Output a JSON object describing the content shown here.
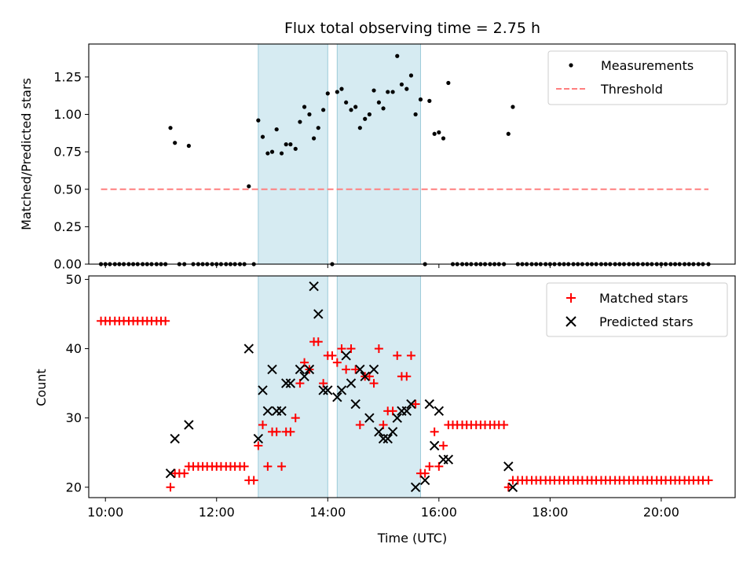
{
  "chart_data": [
    {
      "type": "scatter",
      "title": "Flux total observing time = 2.75 h",
      "xlabel": "",
      "ylabel": "Matched/Predicted stars",
      "xlim": [
        9.7,
        21.33
      ],
      "ylim": [
        0,
        1.47
      ],
      "yticks": [
        0,
        0.25,
        0.5,
        0.75,
        1.0,
        1.25
      ],
      "ytick_labels": [
        "0.00",
        "0.25",
        "0.50",
        "0.75",
        "1.00",
        "1.25"
      ],
      "xticks": [
        10,
        12,
        14,
        16,
        18,
        20
      ],
      "show_xtick_labels": false,
      "shaded_bands": [
        [
          12.75,
          14.0
        ],
        [
          14.17,
          15.67
        ]
      ],
      "threshold": {
        "name": "Threshold",
        "value": 0.5,
        "x_range": [
          9.92,
          20.85
        ],
        "color": "#ff7f7f"
      },
      "series": [
        {
          "name": "Measurements",
          "marker": "dot",
          "color": "#000000",
          "x": [
            9.92,
            10.0,
            10.08,
            10.17,
            10.25,
            10.33,
            10.42,
            10.5,
            10.58,
            10.67,
            10.75,
            10.83,
            10.92,
            11.0,
            11.08,
            11.17,
            11.25,
            11.33,
            11.42,
            11.5,
            11.58,
            11.67,
            11.75,
            11.83,
            11.92,
            12.0,
            12.08,
            12.17,
            12.25,
            12.33,
            12.42,
            12.5,
            12.58,
            12.67,
            12.75,
            12.83,
            12.92,
            13.0,
            13.08,
            13.17,
            13.25,
            13.33,
            13.42,
            13.5,
            13.58,
            13.67,
            13.75,
            13.83,
            13.92,
            14.0,
            14.08,
            14.17,
            14.25,
            14.33,
            14.42,
            14.5,
            14.58,
            14.67,
            14.75,
            14.83,
            14.92,
            15.0,
            15.08,
            15.17,
            15.25,
            15.33,
            15.42,
            15.5,
            15.58,
            15.67,
            15.75,
            15.83,
            15.92,
            16.0,
            16.08,
            16.17,
            16.25,
            16.33,
            16.42,
            16.5,
            16.58,
            16.67,
            16.75,
            16.83,
            16.92,
            17.0,
            17.08,
            17.17,
            17.25,
            17.33,
            17.42,
            17.5,
            17.58,
            17.67,
            17.75,
            17.83,
            17.92,
            18.0,
            18.08,
            18.17,
            18.25,
            18.33,
            18.42,
            18.5,
            18.58,
            18.67,
            18.75,
            18.83,
            18.92,
            19.0,
            19.08,
            19.17,
            19.25,
            19.33,
            19.42,
            19.5,
            19.58,
            19.67,
            19.75,
            19.83,
            19.92,
            20.0,
            20.08,
            20.17,
            20.25,
            20.33,
            20.42,
            20.5,
            20.58,
            20.67,
            20.75,
            20.85
          ],
          "y": [
            0,
            0,
            0,
            0,
            0,
            0,
            0,
            0,
            0,
            0,
            0,
            0,
            0,
            0,
            0,
            0.91,
            0.81,
            0,
            0,
            0.79,
            0,
            0,
            0,
            0,
            0,
            0,
            0,
            0,
            0,
            0,
            0,
            0,
            0.52,
            0,
            0.96,
            0.85,
            0.74,
            0.75,
            0.9,
            0.74,
            0.8,
            0.8,
            0.77,
            0.95,
            1.05,
            1.0,
            0.84,
            0.91,
            1.03,
            1.14,
            0,
            1.15,
            1.17,
            1.08,
            1.03,
            1.05,
            0.91,
            0.97,
            1.0,
            1.16,
            1.08,
            1.04,
            1.15,
            1.15,
            1.39,
            1.2,
            1.17,
            1.26,
            1.0,
            1.1,
            0,
            1.09,
            0.87,
            0.88,
            0.84,
            1.21,
            0,
            0,
            0,
            0,
            0,
            0,
            0,
            0,
            0,
            0,
            0,
            0,
            0.87,
            1.05,
            0,
            0,
            0,
            0,
            0,
            0,
            0,
            0,
            0,
            0,
            0,
            0,
            0,
            0,
            0,
            0,
            0,
            0,
            0,
            0,
            0,
            0,
            0,
            0,
            0,
            0,
            0,
            0,
            0,
            0,
            0,
            0,
            0,
            0,
            0,
            0,
            0,
            0,
            0,
            0,
            0,
            0
          ]
        }
      ]
    },
    {
      "type": "scatter",
      "title": "",
      "xlabel": "Time (UTC)",
      "ylabel": "Count",
      "xlim": [
        9.7,
        21.33
      ],
      "ylim": [
        18.5,
        50.5
      ],
      "yticks": [
        20,
        30,
        40,
        50
      ],
      "ytick_labels": [
        "20",
        "30",
        "40",
        "50"
      ],
      "xticks": [
        10,
        12,
        14,
        16,
        18,
        20
      ],
      "xtick_labels": [
        "10:00",
        "12:00",
        "14:00",
        "16:00",
        "18:00",
        "20:00"
      ],
      "shaded_bands": [
        [
          12.75,
          14.0
        ],
        [
          14.17,
          15.67
        ]
      ],
      "series": [
        {
          "name": "Matched stars",
          "marker": "plus",
          "color": "#ff0000",
          "x": [
            9.92,
            10.0,
            10.08,
            10.17,
            10.25,
            10.33,
            10.42,
            10.5,
            10.58,
            10.67,
            10.75,
            10.83,
            10.92,
            11.0,
            11.08,
            11.17,
            11.25,
            11.33,
            11.42,
            11.5,
            11.58,
            11.67,
            11.75,
            11.83,
            11.92,
            12.0,
            12.08,
            12.17,
            12.25,
            12.33,
            12.42,
            12.5,
            12.58,
            12.67,
            12.75,
            12.83,
            12.92,
            13.0,
            13.08,
            13.17,
            13.25,
            13.33,
            13.42,
            13.5,
            13.58,
            13.67,
            13.75,
            13.83,
            13.92,
            14.0,
            14.08,
            14.17,
            14.25,
            14.33,
            14.42,
            14.5,
            14.58,
            14.67,
            14.75,
            14.83,
            14.92,
            15.0,
            15.08,
            15.17,
            15.25,
            15.33,
            15.42,
            15.5,
            15.58,
            15.67,
            15.75,
            15.83,
            15.92,
            16.0,
            16.08,
            16.17,
            16.25,
            16.33,
            16.42,
            16.5,
            16.58,
            16.67,
            16.75,
            16.83,
            16.92,
            17.0,
            17.08,
            17.17,
            17.25,
            17.33,
            17.42,
            17.5,
            17.58,
            17.67,
            17.75,
            17.83,
            17.92,
            18.0,
            18.08,
            18.17,
            18.25,
            18.33,
            18.42,
            18.5,
            18.58,
            18.67,
            18.75,
            18.83,
            18.92,
            19.0,
            19.08,
            19.17,
            19.25,
            19.33,
            19.42,
            19.5,
            19.58,
            19.67,
            19.75,
            19.83,
            19.92,
            20.0,
            20.08,
            20.17,
            20.25,
            20.33,
            20.42,
            20.5,
            20.58,
            20.67,
            20.75,
            20.85
          ],
          "y": [
            44,
            44,
            44,
            44,
            44,
            44,
            44,
            44,
            44,
            44,
            44,
            44,
            44,
            44,
            44,
            20,
            22,
            22,
            22,
            23,
            23,
            23,
            23,
            23,
            23,
            23,
            23,
            23,
            23,
            23,
            23,
            23,
            21,
            21,
            26,
            29,
            23,
            28,
            28,
            23,
            28,
            28,
            30,
            35,
            38,
            37,
            41,
            41,
            35,
            39,
            39,
            38,
            40,
            37,
            40,
            37,
            29,
            36,
            36,
            35,
            40,
            29,
            31,
            31,
            39,
            36,
            36,
            39,
            32,
            22,
            22,
            23,
            28,
            23,
            26,
            29,
            29,
            29,
            29,
            29,
            29,
            29,
            29,
            29,
            29,
            29,
            29,
            29,
            20,
            21,
            21,
            21,
            21,
            21,
            21,
            21,
            21,
            21,
            21,
            21,
            21,
            21,
            21,
            21,
            21,
            21,
            21,
            21,
            21,
            21,
            21,
            21,
            21,
            21,
            21,
            21,
            21,
            21,
            21,
            21,
            21,
            21,
            21,
            21,
            21,
            21,
            21,
            21,
            21,
            21,
            21,
            21
          ]
        },
        {
          "name": "Predicted stars",
          "marker": "x",
          "color": "#000000",
          "x": [
            11.17,
            11.25,
            11.5,
            12.58,
            12.75,
            12.83,
            12.92,
            13.0,
            13.08,
            13.17,
            13.25,
            13.33,
            13.5,
            13.58,
            13.67,
            13.75,
            13.83,
            13.92,
            14.0,
            14.17,
            14.25,
            14.33,
            14.42,
            14.5,
            14.58,
            14.67,
            14.75,
            14.83,
            14.92,
            15.0,
            15.08,
            15.17,
            15.25,
            15.33,
            15.42,
            15.5,
            15.58,
            15.75,
            15.83,
            15.92,
            16.0,
            16.08,
            16.17,
            17.25,
            17.33
          ],
          "y": [
            22,
            27,
            29,
            40,
            27,
            34,
            31,
            37,
            31,
            31,
            35,
            35,
            37,
            36,
            37,
            49,
            45,
            34,
            34,
            33,
            34,
            39,
            35,
            32,
            37,
            36,
            30,
            37,
            28,
            27,
            27,
            28,
            30,
            31,
            31,
            32,
            20,
            21,
            32,
            26,
            31,
            24,
            24,
            23,
            20
          ]
        }
      ]
    }
  ]
}
